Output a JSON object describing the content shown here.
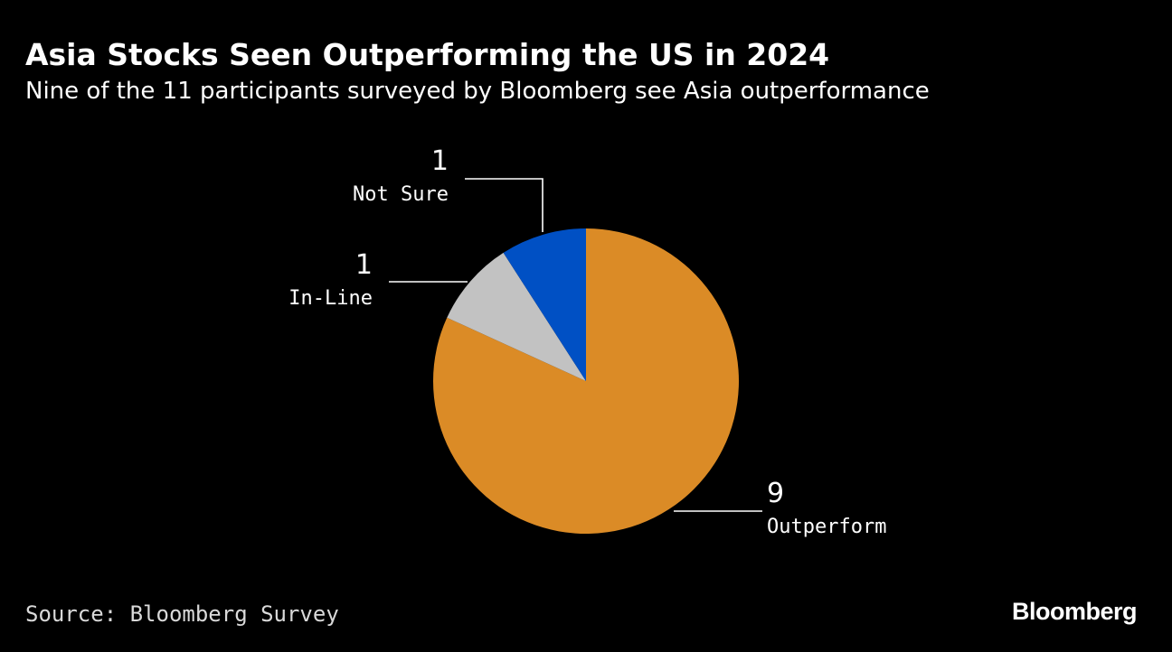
{
  "header": {
    "title": "Asia Stocks Seen Outperforming the US in 2024",
    "subtitle": "Nine of the 11 participants surveyed by Bloomberg see Asia outperformance"
  },
  "chart_data": {
    "type": "pie",
    "title": "Asia Stocks Seen Outperforming the US in 2024",
    "subtitle": "Nine of the 11 participants surveyed by Bloomberg see Asia outperformance",
    "total": 11,
    "slices": [
      {
        "label": "Outperform",
        "value": 9,
        "color": "#db8b26"
      },
      {
        "label": "In-Line",
        "value": 1,
        "color": "#c2c2c2"
      },
      {
        "label": "Not Sure",
        "value": 1,
        "color": "#0050c4"
      }
    ],
    "start": "12 o'clock",
    "direction": "clockwise"
  },
  "footer": {
    "source": "Source: Bloomberg Survey",
    "logo": "Bloomberg"
  },
  "colors": {
    "background": "#000000",
    "text": "#ffffff",
    "leader_line": "#ffffff"
  }
}
